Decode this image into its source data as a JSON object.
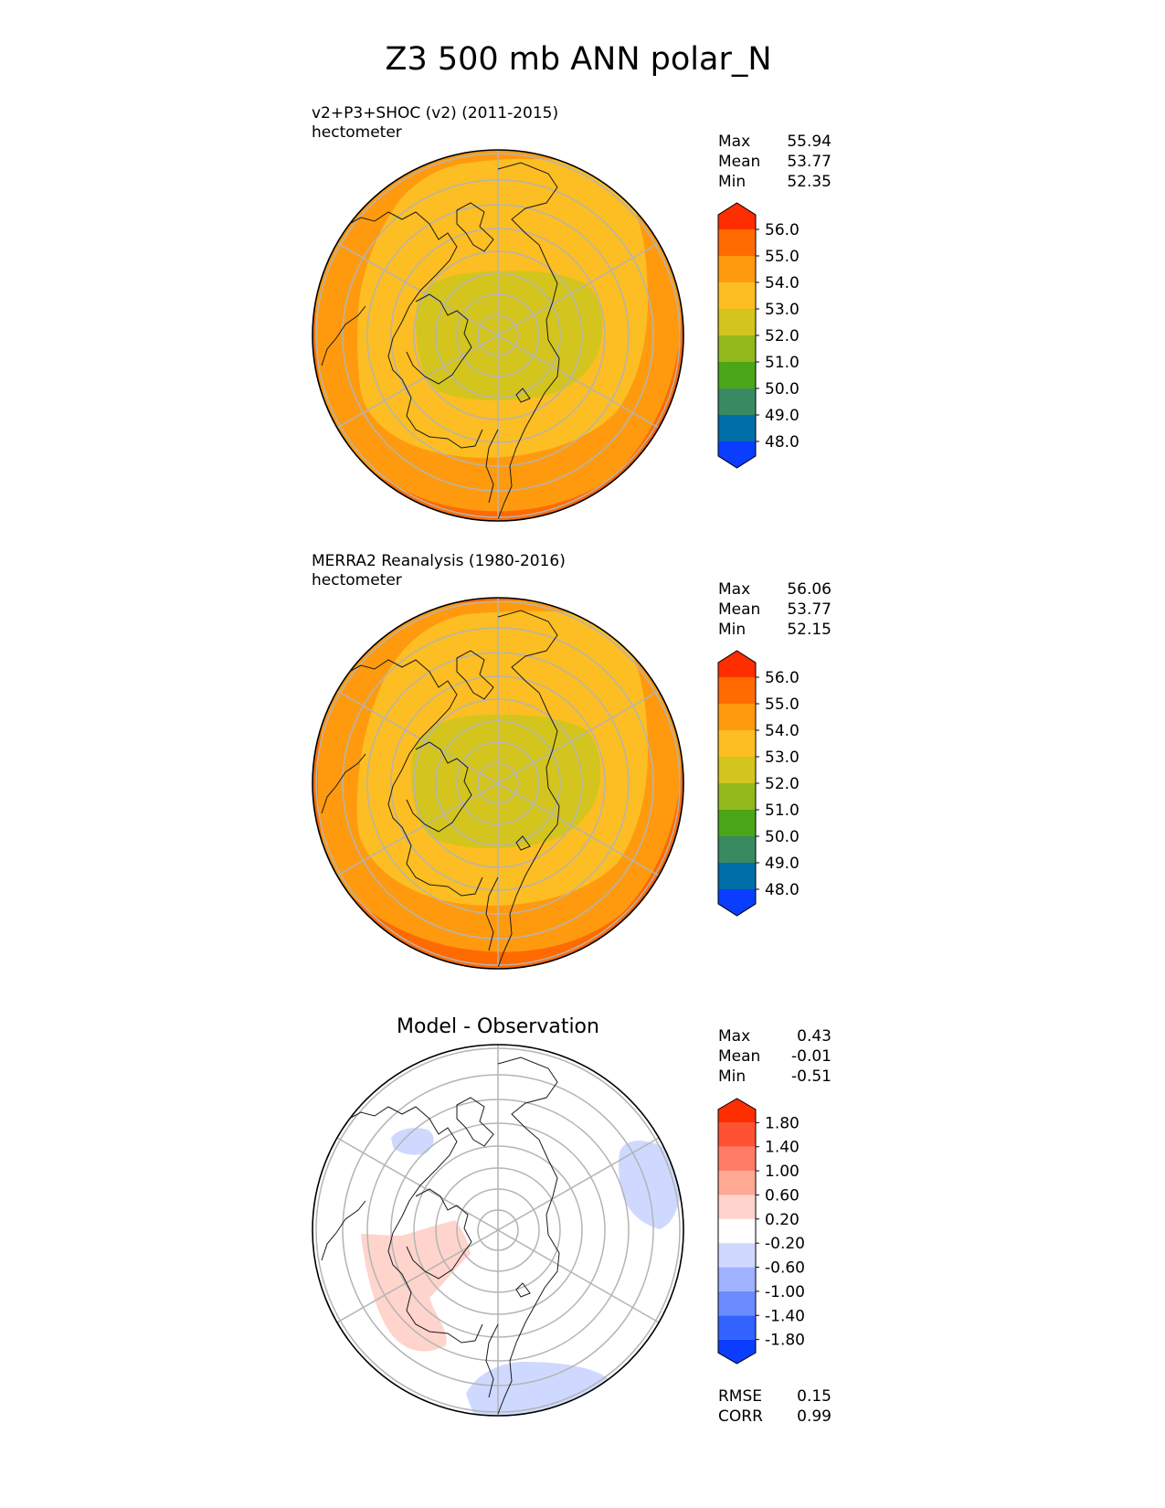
{
  "figure": {
    "title": "Z3 500 mb ANN polar_N"
  },
  "panels": [
    {
      "id": "test",
      "title_line1": "v2+P3+SHOC (v2) (2011-2015)",
      "title_line2": "hectometer",
      "center_title": "",
      "stats": [
        {
          "label": "Max",
          "value": "55.94"
        },
        {
          "label": "Mean",
          "value": "53.77"
        },
        {
          "label": "Min",
          "value": "52.35"
        }
      ],
      "footer_stats": [],
      "colorbar": {
        "levels": [
          "48.0",
          "49.0",
          "50.0",
          "51.0",
          "52.0",
          "53.0",
          "54.0",
          "55.0",
          "56.0"
        ],
        "colors": [
          "#0b3dff",
          "#006ea8",
          "#3a8a61",
          "#4aa617",
          "#93b81c",
          "#d3c51d",
          "#fcbe22",
          "#ff9a0e",
          "#ff6b00",
          "#ff2e00"
        ]
      }
    },
    {
      "id": "reference",
      "title_line1": "MERRA2 Reanalysis (1980-2016)",
      "title_line2": "hectometer",
      "center_title": "",
      "stats": [
        {
          "label": "Max",
          "value": "56.06"
        },
        {
          "label": "Mean",
          "value": "53.77"
        },
        {
          "label": "Min",
          "value": "52.15"
        }
      ],
      "footer_stats": [],
      "colorbar": {
        "levels": [
          "48.0",
          "49.0",
          "50.0",
          "51.0",
          "52.0",
          "53.0",
          "54.0",
          "55.0",
          "56.0"
        ],
        "colors": [
          "#0b3dff",
          "#006ea8",
          "#3a8a61",
          "#4aa617",
          "#93b81c",
          "#d3c51d",
          "#fcbe22",
          "#ff9a0e",
          "#ff6b00",
          "#ff2e00"
        ]
      }
    },
    {
      "id": "diff",
      "title_line1": "",
      "title_line2": "",
      "center_title": "Model - Observation",
      "stats": [
        {
          "label": "Max",
          "value": "0.43"
        },
        {
          "label": "Mean",
          "value": "-0.01"
        },
        {
          "label": "Min",
          "value": "-0.51"
        }
      ],
      "footer_stats": [
        {
          "label": "RMSE",
          "value": "0.15"
        },
        {
          "label": "CORR",
          "value": "0.99"
        }
      ],
      "colorbar": {
        "levels": [
          "-1.80",
          "-1.40",
          "-1.00",
          "-0.60",
          "-0.20",
          "0.20",
          "0.60",
          "1.00",
          "1.40",
          "1.80"
        ],
        "colors": [
          "#0b3dff",
          "#3263ff",
          "#6a8cff",
          "#9fb2ff",
          "#cfd9ff",
          "#ffffff",
          "#ffd4cc",
          "#ffa894",
          "#ff7d66",
          "#ff5233",
          "#ff2e00"
        ]
      }
    }
  ],
  "chart_data": [
    {
      "type": "heatmap",
      "projection": "north-polar-stereographic",
      "title": "v2+P3+SHOC (v2) (2011-2015)",
      "units": "hectometer",
      "field_description": "Z3 500 mb annual mean geopotential height; lowest (~52-53 hm) over the pole and Canadian Arctic, rising to ~55-56 hm at the outer edge",
      "max": 55.94,
      "mean": 53.77,
      "min": 52.35,
      "contour_levels": [
        48,
        49,
        50,
        51,
        52,
        53,
        54,
        55,
        56
      ]
    },
    {
      "type": "heatmap",
      "projection": "north-polar-stereographic",
      "title": "MERRA2 Reanalysis (1980-2016)",
      "units": "hectometer",
      "field_description": "Z3 500 mb annual mean geopotential height reanalysis; similar pattern with low over the pole and high at the periphery",
      "max": 56.06,
      "mean": 53.77,
      "min": 52.15,
      "contour_levels": [
        48,
        49,
        50,
        51,
        52,
        53,
        54,
        55,
        56
      ]
    },
    {
      "type": "heatmap",
      "projection": "north-polar-stereographic",
      "title": "Model - Observation",
      "field_description": "difference field, mostly near zero; small positive anomaly (0.2-0.6) over western Canada/Pacific, small negative anomalies (-0.2 to -0.6) over Europe/North Atlantic, eastern Siberia and the northwest Pacific",
      "max": 0.43,
      "mean": -0.01,
      "min": -0.51,
      "rmse": 0.15,
      "corr": 0.99,
      "contour_levels": [
        -1.8,
        -1.4,
        -1.0,
        -0.6,
        -0.2,
        0.2,
        0.6,
        1.0,
        1.4,
        1.8
      ]
    }
  ]
}
